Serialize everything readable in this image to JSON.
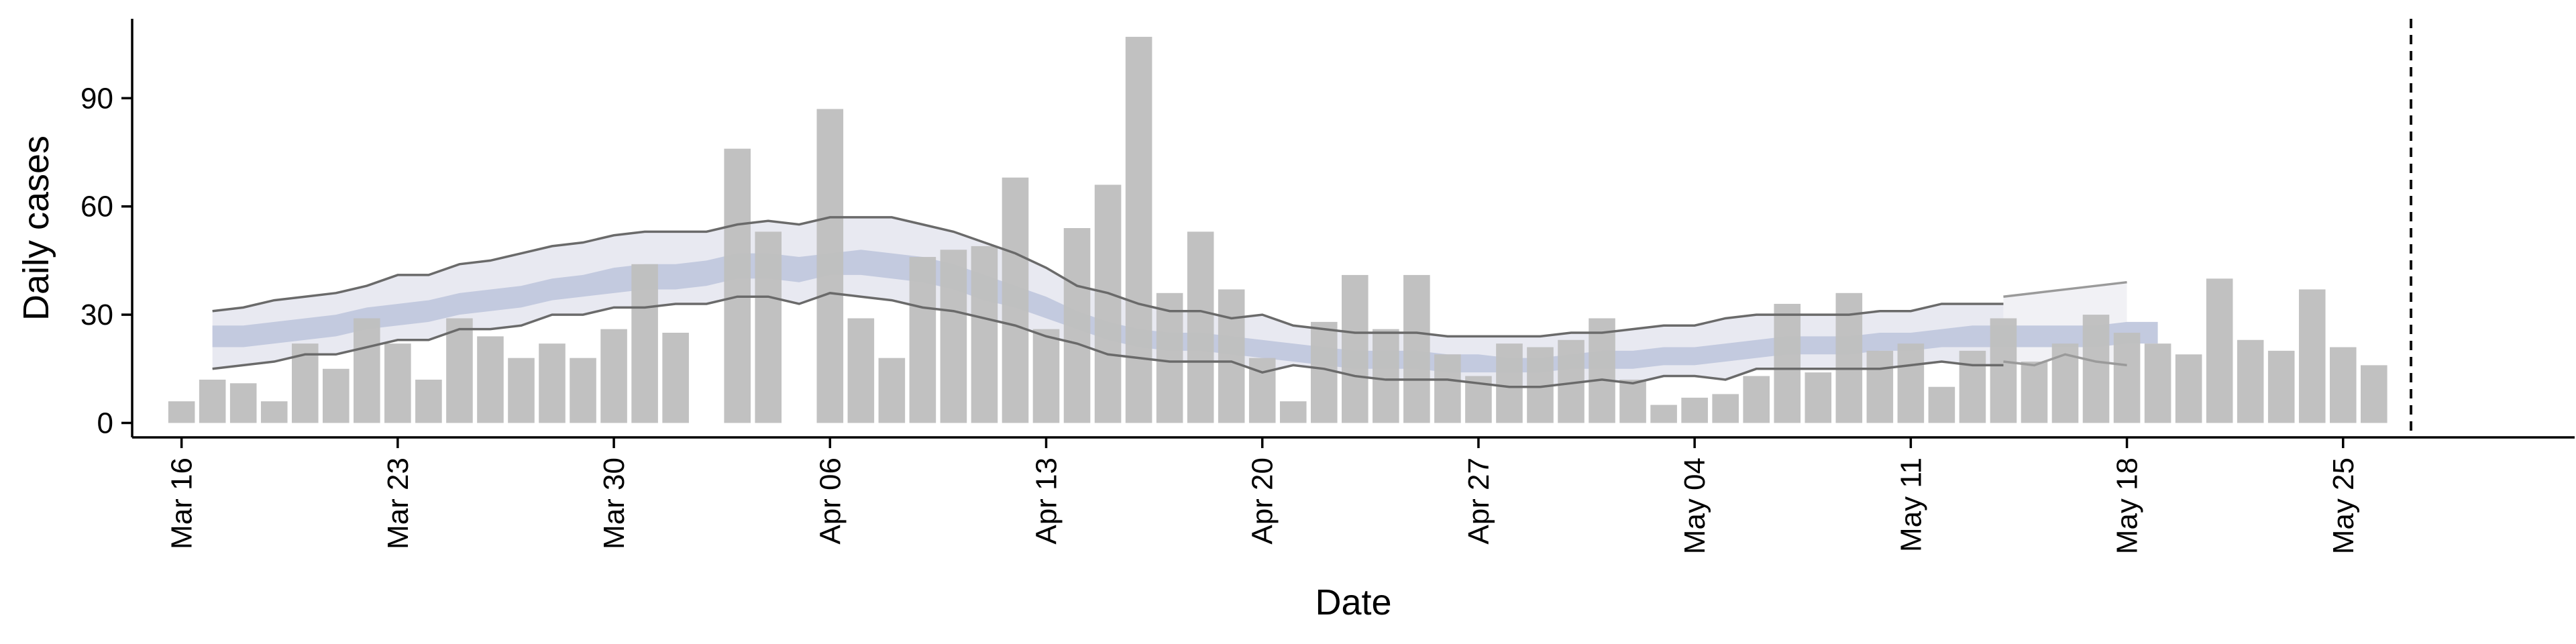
{
  "chart_data": {
    "type": "bar",
    "title": "",
    "xlabel": "Date",
    "ylabel": "Daily cases",
    "ylim": [
      -4,
      112
    ],
    "y_ticks": [
      0,
      30,
      60,
      90
    ],
    "x_range": [
      -1.6,
      77.5
    ],
    "x_ticks": [
      {
        "day": 0,
        "label": "Mar 16"
      },
      {
        "day": 7,
        "label": "Mar 23"
      },
      {
        "day": 14,
        "label": "Mar 30"
      },
      {
        "day": 21,
        "label": "Apr 06"
      },
      {
        "day": 28,
        "label": "Apr 13"
      },
      {
        "day": 35,
        "label": "Apr 20"
      },
      {
        "day": 42,
        "label": "Apr 27"
      },
      {
        "day": 49,
        "label": "May 04"
      },
      {
        "day": 56,
        "label": "May 11"
      },
      {
        "day": 63,
        "label": "May 18"
      },
      {
        "day": 70,
        "label": "May 25"
      }
    ],
    "start_date": "Mar 16",
    "bar_days_offset": 0,
    "daily_cases": [
      6,
      12,
      11,
      6,
      22,
      15,
      29,
      22,
      12,
      29,
      24,
      18,
      22,
      18,
      26,
      44,
      25,
      null,
      76,
      53,
      null,
      87,
      29,
      18,
      46,
      48,
      49,
      68,
      26,
      54,
      66,
      107,
      36,
      53,
      37,
      18,
      6,
      28,
      41,
      26,
      41,
      19,
      13,
      22,
      21,
      23,
      29,
      12,
      5,
      7,
      8,
      13,
      33,
      14,
      36,
      20,
      22,
      10,
      20,
      29,
      17,
      22,
      30,
      25,
      22,
      19,
      40,
      23,
      20,
      37,
      21,
      16
    ],
    "series": [
      {
        "name": "estimate upper bound",
        "start_day": 1,
        "values": [
          31,
          32,
          34,
          35,
          36,
          38,
          41,
          41,
          44,
          45,
          47,
          49,
          50,
          52,
          53,
          53,
          53,
          55,
          56,
          55,
          57,
          57,
          57,
          55,
          53,
          50,
          47,
          43,
          38,
          36,
          33,
          31,
          31,
          29,
          30,
          27,
          26,
          25,
          25,
          25,
          24,
          24,
          24,
          24,
          25,
          25,
          26,
          27,
          27,
          29,
          30,
          30,
          30,
          30,
          31,
          31,
          33,
          33,
          33
        ]
      },
      {
        "name": "estimate lower bound",
        "start_day": 1,
        "values": [
          15,
          16,
          17,
          19,
          19,
          21,
          23,
          23,
          26,
          26,
          27,
          30,
          30,
          32,
          32,
          33,
          33,
          35,
          35,
          33,
          36,
          35,
          34,
          32,
          31,
          29,
          27,
          24,
          22,
          19,
          18,
          17,
          17,
          17,
          14,
          16,
          15,
          13,
          12,
          12,
          12,
          11,
          10,
          10,
          11,
          12,
          11,
          13,
          13,
          12,
          15,
          15,
          15,
          15,
          15,
          16,
          17,
          16,
          16
        ]
      },
      {
        "name": "nowcast upper bound",
        "start_day": 59,
        "values": [
          35,
          36,
          37,
          38,
          39
        ]
      },
      {
        "name": "nowcast lower bound",
        "start_day": 59,
        "values": [
          17,
          16,
          19,
          17,
          16
        ]
      },
      {
        "name": "central band upper",
        "start_day": 1,
        "values": [
          27,
          27,
          28,
          29,
          30,
          32,
          33,
          34,
          36,
          37,
          38,
          40,
          41,
          43,
          44,
          44,
          45,
          47,
          47,
          46,
          47,
          48,
          47,
          46,
          44,
          41,
          38,
          35,
          31,
          28,
          26,
          25,
          25,
          24,
          23,
          22,
          21,
          20,
          20,
          20,
          19,
          19,
          18,
          18,
          19,
          20,
          20,
          21,
          21,
          22,
          23,
          24,
          24,
          24,
          25,
          25,
          26,
          27,
          27,
          27,
          27,
          27,
          28,
          28
        ]
      },
      {
        "name": "central band lower",
        "start_day": 1,
        "values": [
          21,
          21,
          22,
          23,
          24,
          26,
          27,
          28,
          30,
          31,
          32,
          34,
          35,
          36,
          37,
          37,
          38,
          40,
          40,
          39,
          41,
          41,
          40,
          39,
          37,
          34,
          32,
          29,
          26,
          23,
          21,
          20,
          20,
          19,
          18,
          17,
          16,
          15,
          15,
          15,
          14,
          14,
          14,
          14,
          15,
          15,
          15,
          16,
          16,
          17,
          18,
          19,
          19,
          19,
          20,
          20,
          21,
          21,
          21,
          21,
          21,
          21,
          22,
          22
        ]
      }
    ],
    "vertical_marker_day": 72.2,
    "colors": {
      "bars": "#bfbfbf",
      "outer_band": "#e8e9f1",
      "outer_band_nowcast": "#f1f1f5",
      "inner_band": "#c3cadf",
      "bound_line": "#6a6a6a",
      "bound_line_nowcast": "#9a9a9a",
      "marker": "#111111",
      "axis": "#000000"
    }
  }
}
